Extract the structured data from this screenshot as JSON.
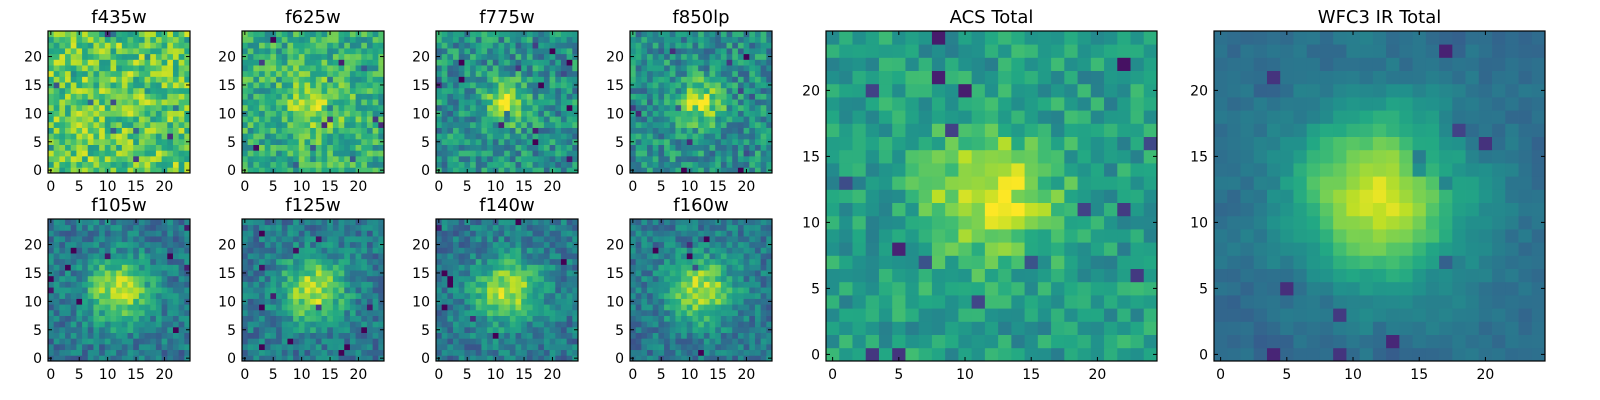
{
  "figure": {
    "panels": [
      {
        "id": "f435w",
        "title": "f435w",
        "pattern": "noise-bright",
        "x_ticks": [
          "0",
          "5",
          "10",
          "15",
          "20"
        ],
        "y_ticks": [
          "0",
          "5",
          "10",
          "15",
          "20"
        ]
      },
      {
        "id": "f625w",
        "title": "f625w",
        "pattern": "faint-center",
        "x_ticks": [
          "0",
          "5",
          "10",
          "15",
          "20"
        ],
        "y_ticks": [
          "0",
          "5",
          "10",
          "15",
          "20"
        ]
      },
      {
        "id": "f775w",
        "title": "f775w",
        "pattern": "compact-source",
        "x_ticks": [
          "0",
          "5",
          "10",
          "15",
          "20"
        ],
        "y_ticks": [
          "0",
          "5",
          "10",
          "15",
          "20"
        ]
      },
      {
        "id": "f850lp",
        "title": "f850lp",
        "pattern": "compact-source",
        "x_ticks": [
          "0",
          "5",
          "10",
          "15",
          "20"
        ],
        "y_ticks": [
          "0",
          "5",
          "10",
          "15",
          "20"
        ]
      },
      {
        "id": "f105w",
        "title": "f105w",
        "pattern": "extended-source",
        "x_ticks": [
          "0",
          "5",
          "10",
          "15",
          "20"
        ],
        "y_ticks": [
          "0",
          "5",
          "10",
          "15",
          "20"
        ]
      },
      {
        "id": "f125w",
        "title": "f125w",
        "pattern": "extended-source",
        "x_ticks": [
          "0",
          "5",
          "10",
          "15",
          "20"
        ],
        "y_ticks": [
          "0",
          "5",
          "10",
          "15",
          "20"
        ]
      },
      {
        "id": "f140w",
        "title": "f140w",
        "pattern": "extended-source",
        "x_ticks": [
          "0",
          "5",
          "10",
          "15",
          "20"
        ],
        "y_ticks": [
          "0",
          "5",
          "10",
          "15",
          "20"
        ]
      },
      {
        "id": "f160w",
        "title": "f160w",
        "pattern": "extended-source",
        "x_ticks": [
          "0",
          "5",
          "10",
          "15",
          "20"
        ],
        "y_ticks": [
          "0",
          "5",
          "10",
          "15",
          "20"
        ]
      },
      {
        "id": "acs-total",
        "title": "ACS Total",
        "pattern": "stack-acs",
        "x_ticks": [
          "0",
          "5",
          "10",
          "15",
          "20"
        ],
        "y_ticks": [
          "0",
          "5",
          "10",
          "15",
          "20"
        ]
      },
      {
        "id": "wfc3-ir-total",
        "title": "WFC3 IR Total",
        "pattern": "stack-ir",
        "x_ticks": [
          "0",
          "5",
          "10",
          "15",
          "20"
        ],
        "y_ticks": [
          "0",
          "5",
          "10",
          "15",
          "20"
        ]
      }
    ]
  },
  "chart_data": [
    {
      "type": "heatmap",
      "title": "f435w",
      "grid_size": [
        25,
        25
      ],
      "xlim": [
        -0.5,
        24.5
      ],
      "ylim": [
        -0.5,
        24.5
      ],
      "colormap": "viridis",
      "source_center": null
    },
    {
      "type": "heatmap",
      "title": "f625w",
      "grid_size": [
        25,
        25
      ],
      "xlim": [
        -0.5,
        24.5
      ],
      "ylim": [
        -0.5,
        24.5
      ],
      "colormap": "viridis",
      "source_center": [
        12,
        12
      ]
    },
    {
      "type": "heatmap",
      "title": "f775w",
      "grid_size": [
        25,
        25
      ],
      "xlim": [
        -0.5,
        24.5
      ],
      "ylim": [
        -0.5,
        24.5
      ],
      "colormap": "viridis",
      "source_center": [
        12,
        12
      ]
    },
    {
      "type": "heatmap",
      "title": "f850lp",
      "grid_size": [
        25,
        25
      ],
      "xlim": [
        -0.5,
        24.5
      ],
      "ylim": [
        -0.5,
        24.5
      ],
      "colormap": "viridis",
      "source_center": [
        12,
        12
      ]
    },
    {
      "type": "heatmap",
      "title": "f105w",
      "grid_size": [
        25,
        25
      ],
      "xlim": [
        -0.5,
        24.5
      ],
      "ylim": [
        -0.5,
        24.5
      ],
      "colormap": "viridis",
      "source_center": [
        12,
        12
      ]
    },
    {
      "type": "heatmap",
      "title": "f125w",
      "grid_size": [
        25,
        25
      ],
      "xlim": [
        -0.5,
        24.5
      ],
      "ylim": [
        -0.5,
        24.5
      ],
      "colormap": "viridis",
      "source_center": [
        12,
        12
      ]
    },
    {
      "type": "heatmap",
      "title": "f140w",
      "grid_size": [
        25,
        25
      ],
      "xlim": [
        -0.5,
        24.5
      ],
      "ylim": [
        -0.5,
        24.5
      ],
      "colormap": "viridis",
      "source_center": [
        12,
        12
      ]
    },
    {
      "type": "heatmap",
      "title": "f160w",
      "grid_size": [
        25,
        25
      ],
      "xlim": [
        -0.5,
        24.5
      ],
      "ylim": [
        -0.5,
        24.5
      ],
      "colormap": "viridis",
      "source_center": [
        12,
        12
      ]
    },
    {
      "type": "heatmap",
      "title": "ACS Total",
      "grid_size": [
        25,
        25
      ],
      "xlim": [
        -0.5,
        24.5
      ],
      "ylim": [
        -0.5,
        24.5
      ],
      "colormap": "viridis",
      "source_center": [
        12,
        12
      ]
    },
    {
      "type": "heatmap",
      "title": "WFC3 IR Total",
      "grid_size": [
        25,
        25
      ],
      "xlim": [
        -0.5,
        24.5
      ],
      "ylim": [
        -0.5,
        24.5
      ],
      "colormap": "viridis",
      "source_center": [
        12,
        12
      ]
    }
  ]
}
